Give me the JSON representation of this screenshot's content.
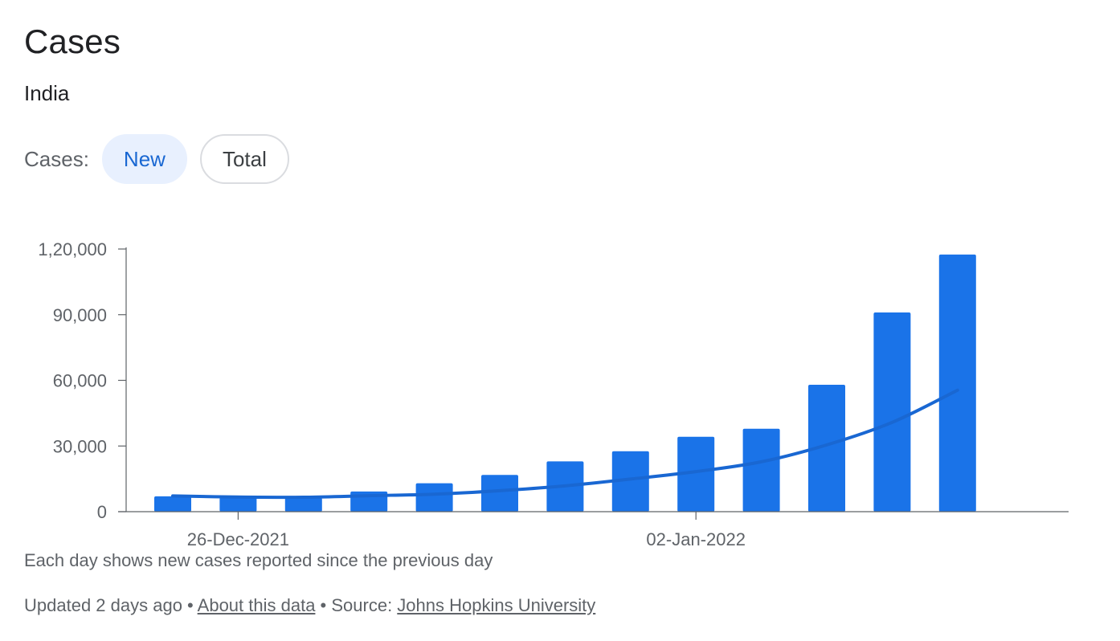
{
  "header": {
    "title": "Cases",
    "region": "India"
  },
  "toggle": {
    "label": "Cases:",
    "options": [
      "New",
      "Total"
    ],
    "selected": "New"
  },
  "chart_data": {
    "type": "bar",
    "x": [
      "2021-12-25",
      "2021-12-26",
      "2021-12-27",
      "2021-12-28",
      "2021-12-29",
      "2021-12-30",
      "2021-12-31",
      "2022-01-01",
      "2022-01-02",
      "2022-01-03",
      "2022-01-04",
      "2022-01-05",
      "2022-01-06"
    ],
    "x_tick_labels": [
      {
        "x": "2021-12-26",
        "label": "26-Dec-2021"
      },
      {
        "x": "2022-01-02",
        "label": "02-Jan-2022"
      }
    ],
    "series": [
      {
        "kind": "bar",
        "color": "#1a73e8",
        "values": [
          7000,
          6500,
          6400,
          9200,
          13000,
          16800,
          23000,
          27600,
          34200,
          37900,
          58000,
          91000,
          117500
        ]
      },
      {
        "kind": "line",
        "color": "#1967d2",
        "values": [
          7200,
          6700,
          6600,
          7300,
          8000,
          9600,
          11800,
          14900,
          18300,
          22800,
          30500,
          40800,
          55500
        ]
      }
    ],
    "ylim": [
      0,
      120000
    ],
    "y_ticks": [
      0,
      30000,
      60000,
      90000,
      120000
    ],
    "y_tick_labels": [
      "0",
      "30,000",
      "60,000",
      "90,000",
      "1,20,000"
    ],
    "grid": false
  },
  "note": "Each day shows new cases reported since the previous day",
  "footer": {
    "updated": "Updated 2 days ago",
    "sep1": " • ",
    "about_link": "About this data",
    "sep2": " • Source: ",
    "source_link": "Johns Hopkins University"
  }
}
